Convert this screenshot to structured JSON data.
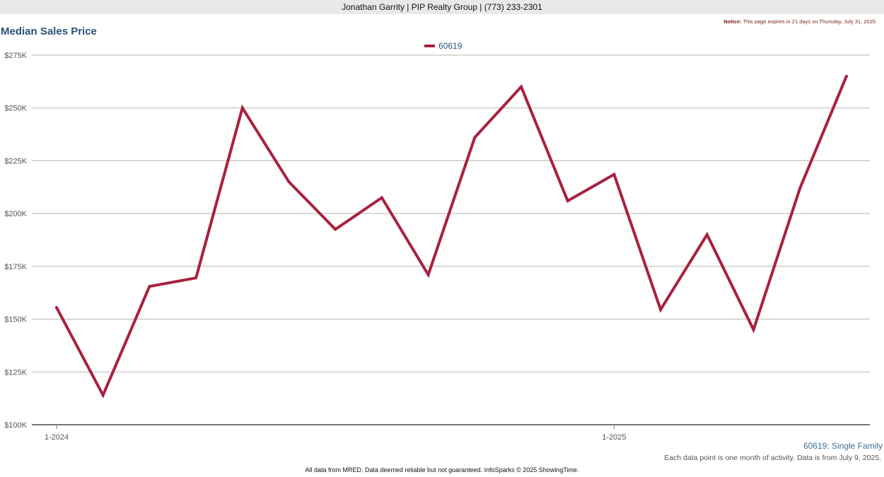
{
  "header": {
    "agent_line": "Jonathan Garrity | PIP Realty Group | (773) 233-2301"
  },
  "notice": {
    "label": "Notice:",
    "text": "This page expires in 21 days on Thursday, July 31, 2025."
  },
  "chart_title": "Median Sales Price",
  "subtitle": "60619: Single Family",
  "data_note": "Each data point is one month of activity. Data is from July 9, 2025.",
  "footer": "All data from MRED. Data deemed reliable but not guaranteed. InfoSparks © 2025 ShowingTime.",
  "colors": {
    "series": "#a8213f",
    "title": "#2b5278",
    "grid": "#b5b5b5",
    "axis": "#777777"
  },
  "chart_data": {
    "type": "line",
    "title": "Median Sales Price",
    "x": [
      "1-2024",
      "2-2024",
      "3-2024",
      "4-2024",
      "5-2024",
      "6-2024",
      "7-2024",
      "8-2024",
      "9-2024",
      "10-2024",
      "11-2024",
      "12-2024",
      "1-2025",
      "2-2025",
      "3-2025",
      "4-2025",
      "5-2025",
      "6-2025"
    ],
    "x_tick_labels": [
      "1-2024",
      "1-2025"
    ],
    "series": [
      {
        "name": "60619",
        "values": [
          155500,
          114000,
          165500,
          169500,
          250000,
          215000,
          192500,
          207500,
          171000,
          236000,
          260000,
          206000,
          218500,
          154500,
          190000,
          145000,
          212000,
          265000
        ]
      }
    ],
    "ylim": [
      100000,
      275000
    ],
    "y_ticks": [
      100000,
      125000,
      150000,
      175000,
      200000,
      225000,
      250000,
      275000
    ],
    "y_tick_labels": [
      "$100K",
      "$125K",
      "$150K",
      "$175K",
      "$200K",
      "$225K",
      "$250K",
      "$275K"
    ],
    "grid": true,
    "legend": "top-center"
  }
}
